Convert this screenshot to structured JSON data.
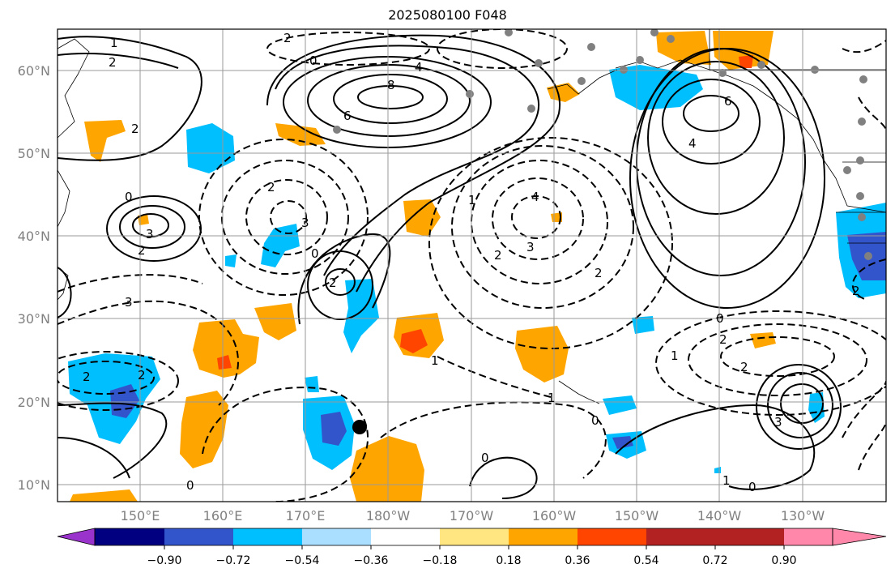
{
  "title": "2025080100 F048",
  "lat_labels": [
    "60°N",
    "50°N",
    "40°N",
    "30°N",
    "20°N",
    "10°N"
  ],
  "lon_labels": [
    "150°E",
    "160°E",
    "170°E",
    "180°W",
    "170°W",
    "160°W",
    "150°W",
    "140°W",
    "130°W"
  ],
  "colorbar": {
    "tick_labels": [
      "−0.90",
      "−0.72",
      "−0.54",
      "−0.36",
      "−0.18",
      "0.18",
      "0.36",
      "0.54",
      "0.72",
      "0.90"
    ],
    "colors": [
      "#9933cc",
      "#000080",
      "#3355cc",
      "#00bfff",
      "#aadfff",
      "#ffffff",
      "#ffe680",
      "#ffa500",
      "#ff4500",
      "#b22222",
      "#ff88aa"
    ]
  },
  "contour_labels": {
    "l8": "8",
    "l6a": "6",
    "l4a": "4",
    "l6b": "6",
    "l4b": "4",
    "l2a": "2",
    "l1a": "1",
    "l2b": "2",
    "l2c": "2",
    "l0a": "0",
    "l3a": "3",
    "l2d": "2",
    "l3b": "3",
    "l2e": "2",
    "l0b": "0",
    "l4c": "4",
    "l3c": "3",
    "l2f": "2",
    "l2g": "2",
    "l1b": "1",
    "l2h": "2",
    "l2i": "2",
    "l0c": "0",
    "l1c": "1",
    "l0d": "0",
    "l2j": "2",
    "l0e": "0",
    "l1d": "1",
    "l3d": "3",
    "l2k": "2",
    "l0f": "0",
    "l1e": "1",
    "l0g": "0",
    "l1f": "1",
    "l2l": "2",
    "l2m": "2",
    "l0h": "0",
    "l3e": "3"
  },
  "marker_label": ""
}
